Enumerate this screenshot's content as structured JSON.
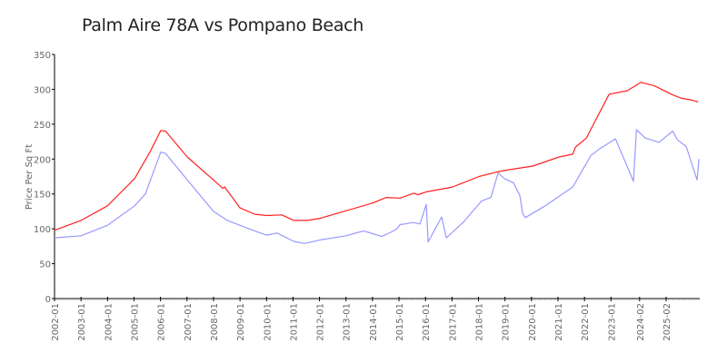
{
  "chart_data": {
    "type": "line",
    "title": "Palm Aire 78A vs Pompano Beach",
    "xlabel": "",
    "ylabel": "Price Per Sq Ft",
    "ylim": [
      0,
      350
    ],
    "xlim": [
      2002.0,
      2026.35
    ],
    "yticks": [
      0,
      50,
      100,
      150,
      200,
      250,
      300,
      350
    ],
    "xticks": [
      {
        "label": "2002-01",
        "x": 2002.0
      },
      {
        "label": "2003-01",
        "x": 2003.0
      },
      {
        "label": "2004-01",
        "x": 2004.0
      },
      {
        "label": "2005-01",
        "x": 2005.0
      },
      {
        "label": "2006-01",
        "x": 2006.0
      },
      {
        "label": "2007-01",
        "x": 2007.0
      },
      {
        "label": "2008-01",
        "x": 2008.0
      },
      {
        "label": "2009-01",
        "x": 2009.0
      },
      {
        "label": "2010-01",
        "x": 2010.0
      },
      {
        "label": "2011-01",
        "x": 2011.0
      },
      {
        "label": "2012-01",
        "x": 2012.0
      },
      {
        "label": "2013-01",
        "x": 2013.0
      },
      {
        "label": "2014-01",
        "x": 2014.0
      },
      {
        "label": "2015-01",
        "x": 2015.0
      },
      {
        "label": "2016-01",
        "x": 2016.0
      },
      {
        "label": "2017-01",
        "x": 2017.0
      },
      {
        "label": "2018-01",
        "x": 2018.0
      },
      {
        "label": "2019-01",
        "x": 2019.0
      },
      {
        "label": "2020-01",
        "x": 2020.0
      },
      {
        "label": "2021-01",
        "x": 2021.0
      },
      {
        "label": "2022-01",
        "x": 2022.0
      },
      {
        "label": "2023-01",
        "x": 2023.0
      },
      {
        "label": "2024-02",
        "x": 2024.08
      },
      {
        "label": "2025-02",
        "x": 2025.08
      }
    ],
    "grid": false,
    "legend": "none",
    "series": [
      {
        "color": "#ff2020",
        "points": [
          [
            2002.0,
            98
          ],
          [
            2003.0,
            112
          ],
          [
            2004.0,
            133
          ],
          [
            2005.02,
            172
          ],
          [
            2005.6,
            210
          ],
          [
            2006.01,
            241
          ],
          [
            2006.19,
            240
          ],
          [
            2007.01,
            203
          ],
          [
            2008.0,
            170
          ],
          [
            2008.35,
            158
          ],
          [
            2008.42,
            160
          ],
          [
            2009.0,
            130
          ],
          [
            2009.55,
            121
          ],
          [
            2010.0,
            119
          ],
          [
            2010.58,
            120
          ],
          [
            2011.03,
            112
          ],
          [
            2011.54,
            112
          ],
          [
            2012.02,
            115
          ],
          [
            2013.01,
            126
          ],
          [
            2014.01,
            137
          ],
          [
            2014.52,
            145
          ],
          [
            2015.04,
            144
          ],
          [
            2015.55,
            151
          ],
          [
            2015.72,
            149
          ],
          [
            2016.03,
            153
          ],
          [
            2016.75,
            158
          ],
          [
            2017.03,
            160
          ],
          [
            2018.02,
            175
          ],
          [
            2018.64,
            181
          ],
          [
            2019.02,
            184
          ],
          [
            2020.05,
            190
          ],
          [
            2021.04,
            203
          ],
          [
            2021.56,
            207
          ],
          [
            2021.66,
            217
          ],
          [
            2022.07,
            230
          ],
          [
            2022.41,
            255
          ],
          [
            2022.93,
            293
          ],
          [
            2023.61,
            298
          ],
          [
            2024.13,
            310
          ],
          [
            2024.64,
            305
          ],
          [
            2025.33,
            292
          ],
          [
            2025.67,
            287
          ],
          [
            2026.01,
            285
          ],
          [
            2026.29,
            282
          ]
        ]
      },
      {
        "color": "#9999ff",
        "points": [
          [
            2002.0,
            87
          ],
          [
            2003.0,
            90
          ],
          [
            2004.0,
            105
          ],
          [
            2005.02,
            133
          ],
          [
            2005.43,
            150
          ],
          [
            2006.01,
            210
          ],
          [
            2006.19,
            208
          ],
          [
            2007.01,
            170
          ],
          [
            2008.0,
            125
          ],
          [
            2008.52,
            112
          ],
          [
            2009.0,
            105
          ],
          [
            2009.55,
            97
          ],
          [
            2010.0,
            91
          ],
          [
            2010.4,
            94
          ],
          [
            2011.03,
            82
          ],
          [
            2011.43,
            79
          ],
          [
            2012.02,
            84
          ],
          [
            2013.01,
            90
          ],
          [
            2013.66,
            97
          ],
          [
            2014.01,
            93
          ],
          [
            2014.35,
            89
          ],
          [
            2014.69,
            95
          ],
          [
            2014.93,
            100
          ],
          [
            2015.04,
            106
          ],
          [
            2015.21,
            107
          ],
          [
            2015.55,
            109
          ],
          [
            2015.79,
            107
          ],
          [
            2016.03,
            135
          ],
          [
            2016.1,
            81
          ],
          [
            2016.61,
            117
          ],
          [
            2016.79,
            87
          ],
          [
            2017.44,
            110
          ],
          [
            2018.12,
            140
          ],
          [
            2018.47,
            145
          ],
          [
            2018.74,
            180
          ],
          [
            2018.98,
            172
          ],
          [
            2019.32,
            166
          ],
          [
            2019.56,
            148
          ],
          [
            2019.67,
            122
          ],
          [
            2019.77,
            116
          ],
          [
            2020.52,
            133
          ],
          [
            2021.56,
            160
          ],
          [
            2022.24,
            205
          ],
          [
            2022.58,
            215
          ],
          [
            2023.17,
            229
          ],
          [
            2023.85,
            168
          ],
          [
            2023.96,
            242
          ],
          [
            2024.3,
            230
          ],
          [
            2024.81,
            224
          ],
          [
            2025.33,
            240
          ],
          [
            2025.5,
            228
          ],
          [
            2025.84,
            218
          ],
          [
            2026.25,
            170
          ],
          [
            2026.32,
            200
          ]
        ]
      }
    ]
  }
}
